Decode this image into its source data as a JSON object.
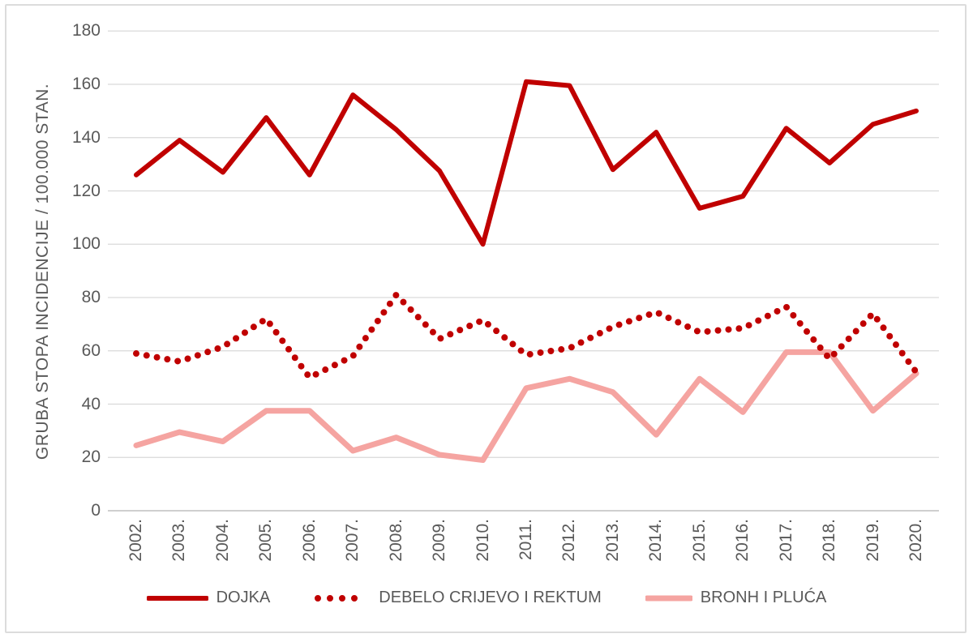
{
  "chart_data": {
    "type": "line",
    "title": "",
    "xlabel": "",
    "ylabel": "GRUBA STOPA INCIDENCIJE / 100.000 STAN.",
    "categories": [
      "2002.",
      "2003.",
      "2004.",
      "2005.",
      "2006.",
      "2007.",
      "2008.",
      "2009.",
      "2010.",
      "2011.",
      "2012.",
      "2013.",
      "2014.",
      "2015.",
      "2016.",
      "2017.",
      "2018.",
      "2019.",
      "2020."
    ],
    "y_ticks": [
      0,
      20,
      40,
      60,
      80,
      100,
      120,
      140,
      160,
      180
    ],
    "ylim": [
      0,
      180
    ],
    "grid": true,
    "legend_position": "bottom",
    "series": [
      {
        "name": "DOJKA",
        "style": "solid",
        "color": "#C00000",
        "values": [
          126,
          139,
          127,
          147.5,
          126,
          156,
          143,
          127.5,
          100,
          161,
          159.5,
          128,
          142,
          113.5,
          118,
          143.5,
          130.5,
          145,
          150
        ]
      },
      {
        "name": "DEBELO CRIJEVO I REKTUM",
        "style": "dotted",
        "color": "#C00000",
        "values": [
          59,
          56,
          61.5,
          72,
          50,
          58,
          81,
          64.5,
          71.5,
          58.5,
          61,
          69,
          74.5,
          67,
          68.5,
          76.5,
          57,
          74,
          52
        ]
      },
      {
        "name": "BRONH I PLUĆA",
        "style": "solid",
        "color": "#F5A4A1",
        "values": [
          24.5,
          29.5,
          26,
          37.5,
          37.5,
          22.5,
          27.5,
          21,
          19,
          46,
          49.5,
          44.5,
          28.5,
          49.5,
          37,
          59.5,
          59.5,
          37.5,
          51.5
        ]
      }
    ]
  },
  "colors": {
    "accent_dark_red": "#C00000",
    "accent_pink": "#F5A4A1",
    "text": "#595959",
    "gridline": "#D9D9D9",
    "axis_line": "#BFBFBF",
    "frame_border": "#DCDCDC",
    "background": "#FFFFFF"
  }
}
